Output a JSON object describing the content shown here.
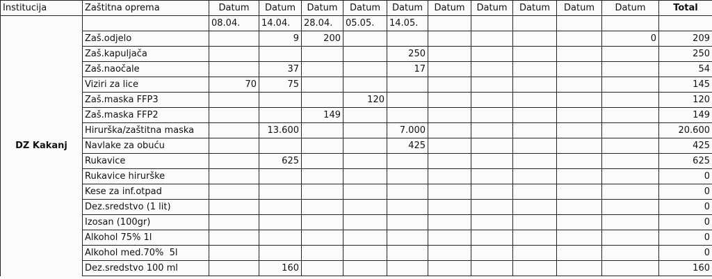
{
  "table": {
    "headers": {
      "institution": "Institucija",
      "item": "Zaštitna oprema",
      "dates": [
        "Datum",
        "Datum",
        "Datum",
        "Datum",
        "Datum",
        "Datum",
        "Datum",
        "Datum",
        "Datum",
        "Datum"
      ],
      "total": "Total"
    },
    "date_values": [
      "08.04.",
      "14.04.",
      "28.04.",
      "05.05.",
      "14.05.",
      null,
      null,
      null,
      null,
      null
    ],
    "institution": "DZ Kakanj",
    "rows": [
      {
        "item": "Zaš.odjelo",
        "cells": [
          null,
          "9",
          "200",
          null,
          null,
          null,
          null,
          null,
          null,
          "0"
        ],
        "total": "209"
      },
      {
        "item": "Zaš.kapuljača",
        "cells": [
          null,
          null,
          null,
          null,
          "250",
          null,
          null,
          null,
          null,
          null
        ],
        "total": "250"
      },
      {
        "item": "Zaš.naočale",
        "cells": [
          null,
          "37",
          null,
          null,
          "17",
          null,
          null,
          null,
          null,
          null
        ],
        "total": "54"
      },
      {
        "item": "Viziri za lice",
        "cells": [
          "70",
          "75",
          null,
          null,
          null,
          null,
          null,
          null,
          null,
          null
        ],
        "total": "145"
      },
      {
        "item": "Zaš.maska FFP3",
        "cells": [
          null,
          null,
          null,
          "120",
          null,
          null,
          null,
          null,
          null,
          null
        ],
        "total": "120"
      },
      {
        "item": "Zaš.maska FFP2",
        "cells": [
          null,
          null,
          "149",
          null,
          null,
          null,
          null,
          null,
          null,
          null
        ],
        "total": "149"
      },
      {
        "item": "Hirurška/zaštitna maska",
        "cells": [
          null,
          "13.600",
          null,
          null,
          "7.000",
          null,
          null,
          null,
          null,
          null
        ],
        "total": "20.600"
      },
      {
        "item": "Navlake za obuću",
        "cells": [
          null,
          null,
          null,
          null,
          "425",
          null,
          null,
          null,
          null,
          null
        ],
        "total": "425"
      },
      {
        "item": "Rukavice",
        "cells": [
          null,
          "625",
          null,
          null,
          null,
          null,
          null,
          null,
          null,
          null
        ],
        "total": "625"
      },
      {
        "item": "Rukavice hirurške",
        "cells": [
          null,
          null,
          null,
          null,
          null,
          null,
          null,
          null,
          null,
          null
        ],
        "total": "0"
      },
      {
        "item": "Kese za inf.otpad",
        "cells": [
          null,
          null,
          null,
          null,
          null,
          null,
          null,
          null,
          null,
          null
        ],
        "total": "0"
      },
      {
        "item": "Dez.sredstvo (1 lit)",
        "cells": [
          null,
          null,
          null,
          null,
          null,
          null,
          null,
          null,
          null,
          null
        ],
        "total": "0"
      },
      {
        "item": "Izosan (100gr)",
        "cells": [
          null,
          null,
          null,
          null,
          null,
          null,
          null,
          null,
          null,
          null
        ],
        "total": "0"
      },
      {
        "item": "Alkohol 75% 1l",
        "cells": [
          null,
          null,
          null,
          null,
          null,
          null,
          null,
          null,
          null,
          null
        ],
        "total": "0"
      },
      {
        "item": "Alkohol med.70%  5l",
        "cells": [
          null,
          null,
          null,
          null,
          null,
          null,
          null,
          null,
          null,
          null
        ],
        "total": "0"
      },
      {
        "item": "Dez.sredstvo 100 ml",
        "cells": [
          null,
          "160",
          null,
          null,
          null,
          null,
          null,
          null,
          null,
          null
        ],
        "total": "160"
      }
    ]
  }
}
